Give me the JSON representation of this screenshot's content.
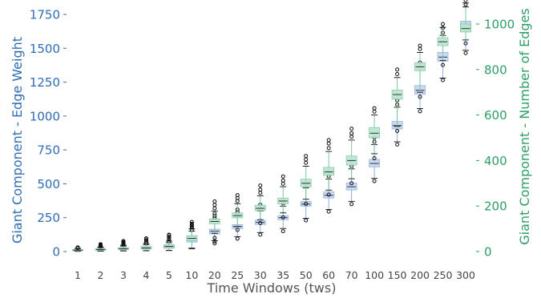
{
  "chart_data": {
    "type": "box",
    "xlabel": "Time Windows (tws)",
    "ylabel_left": "Giant Component - Edge Weight",
    "ylabel_right": "Giant Component - Number of Edges",
    "categories": [
      "1",
      "2",
      "3",
      "4",
      "5",
      "10",
      "20",
      "25",
      "30",
      "35",
      "50",
      "60",
      "70",
      "100",
      "150",
      "200",
      "250",
      "300"
    ],
    "ylim_left": [
      0,
      1750
    ],
    "ylim_right": [
      0,
      1000
    ],
    "yticks_left": [
      0,
      250,
      500,
      750,
      1000,
      1250,
      1500,
      1750
    ],
    "yticks_right": [
      0,
      200,
      400,
      600,
      800,
      1000
    ],
    "colors": {
      "left_axis": "#2f6db3",
      "right_axis": "#2e9e66",
      "weight_box": "#c9d9f2",
      "weight_edge": "#8eaee0",
      "edges_box": "#bfe6d2",
      "edges_edge": "#7ec9a3"
    },
    "series": [
      {
        "name": "Edge Weight",
        "axis": "left",
        "boxes": [
          {
            "whislo": 3,
            "q1": 8,
            "med": 11,
            "q3": 15,
            "whishi": 22,
            "fliers": [
              25,
              28,
              30
            ]
          },
          {
            "whislo": 4,
            "q1": 10,
            "med": 14,
            "q3": 19,
            "whishi": 30,
            "fliers": [
              35,
              40,
              45,
              52
            ]
          },
          {
            "whislo": 5,
            "q1": 14,
            "med": 19,
            "q3": 25,
            "whishi": 40,
            "fliers": [
              48,
              55,
              62,
              70
            ]
          },
          {
            "whislo": 6,
            "q1": 18,
            "med": 24,
            "q3": 32,
            "whishi": 50,
            "fliers": [
              60,
              70,
              82,
              95
            ]
          },
          {
            "whislo": 8,
            "q1": 25,
            "med": 33,
            "q3": 42,
            "whishi": 65,
            "fliers": [
              75,
              90,
              105,
              120
            ]
          },
          {
            "whislo": 20,
            "q1": 70,
            "med": 90,
            "q3": 110,
            "whishi": 150,
            "fliers": [
              160,
              175,
              190,
              205
            ]
          },
          {
            "whislo": 80,
            "q1": 130,
            "med": 150,
            "q3": 165,
            "whishi": 230,
            "fliers": [
              60,
              75,
              245,
              262,
              280
            ]
          },
          {
            "whislo": 110,
            "q1": 170,
            "med": 185,
            "q3": 198,
            "whishi": 255,
            "fliers": [
              95,
              270,
              290,
              310
            ]
          },
          {
            "whislo": 140,
            "q1": 200,
            "med": 215,
            "q3": 230,
            "whishi": 300,
            "fliers": [
              125,
              320,
              345
            ]
          },
          {
            "whislo": 170,
            "q1": 235,
            "med": 250,
            "q3": 265,
            "whishi": 335,
            "fliers": [
              150,
              355,
              380
            ]
          },
          {
            "whislo": 245,
            "q1": 335,
            "med": 350,
            "q3": 370,
            "whishi": 470,
            "fliers": [
              230,
              490,
              515
            ]
          },
          {
            "whislo": 310,
            "q1": 395,
            "med": 415,
            "q3": 440,
            "whishi": 535,
            "fliers": [
              295,
              555,
              585
            ]
          },
          {
            "whislo": 370,
            "q1": 455,
            "med": 478,
            "q3": 505,
            "whishi": 610,
            "fliers": [
              350,
              630,
              660
            ]
          },
          {
            "whislo": 540,
            "q1": 625,
            "med": 650,
            "q3": 680,
            "whishi": 790,
            "fliers": [
              520,
              810,
              840
            ]
          },
          {
            "whislo": 810,
            "q1": 905,
            "med": 930,
            "q3": 960,
            "whishi": 1065,
            "fliers": [
              790,
              1085,
              1115
            ]
          },
          {
            "whislo": 1055,
            "q1": 1160,
            "med": 1190,
            "q3": 1225,
            "whishi": 1345,
            "fliers": [
              1035,
              1365,
              1395
            ]
          },
          {
            "whislo": 1280,
            "q1": 1405,
            "med": 1435,
            "q3": 1470,
            "whishi": 1595,
            "fliers": [
              1265,
              1615,
              1650
            ]
          },
          {
            "whislo": 1485,
            "q1": 1625,
            "med": 1660,
            "q3": 1700,
            "whishi": 1835,
            "fliers": [
              1465,
              1855,
              1890
            ]
          }
        ]
      },
      {
        "name": "Number of Edges",
        "axis": "right",
        "boxes": [
          {
            "whislo": 1,
            "q1": 4,
            "med": 6,
            "q3": 9,
            "whishi": 14,
            "fliers": [
              16,
              18
            ]
          },
          {
            "whislo": 2,
            "q1": 6,
            "med": 9,
            "q3": 13,
            "whishi": 20,
            "fliers": [
              24,
              28,
              32
            ]
          },
          {
            "whislo": 3,
            "q1": 9,
            "med": 13,
            "q3": 17,
            "whishi": 28,
            "fliers": [
              34,
              40,
              46
            ]
          },
          {
            "whislo": 4,
            "q1": 12,
            "med": 16,
            "q3": 22,
            "whishi": 36,
            "fliers": [
              42,
              50,
              58
            ]
          },
          {
            "whislo": 5,
            "q1": 17,
            "med": 23,
            "q3": 30,
            "whishi": 46,
            "fliers": [
              54,
              64,
              74
            ]
          },
          {
            "whislo": 15,
            "q1": 48,
            "med": 58,
            "q3": 70,
            "whishi": 100,
            "fliers": [
              108,
              118,
              130
            ]
          },
          {
            "whislo": 80,
            "q1": 122,
            "med": 132,
            "q3": 143,
            "whishi": 178,
            "fliers": [
              60,
              190,
              205,
              220
            ]
          },
          {
            "whislo": 110,
            "q1": 148,
            "med": 158,
            "q3": 170,
            "whishi": 210,
            "fliers": [
              95,
              222,
              235,
              248
            ]
          },
          {
            "whislo": 140,
            "q1": 180,
            "med": 190,
            "q3": 204,
            "whishi": 245,
            "fliers": [
              125,
              258,
              272,
              290
            ]
          },
          {
            "whislo": 170,
            "q1": 210,
            "med": 222,
            "q3": 235,
            "whishi": 285,
            "fliers": [
              150,
              298,
              312,
              330
            ]
          },
          {
            "whislo": 230,
            "q1": 285,
            "med": 300,
            "q3": 318,
            "whishi": 375,
            "fliers": [
              210,
              390,
              405,
              420
            ]
          },
          {
            "whislo": 270,
            "q1": 335,
            "med": 350,
            "q3": 370,
            "whishi": 440,
            "fliers": [
              250,
              455,
              475,
              490
            ]
          },
          {
            "whislo": 320,
            "q1": 380,
            "med": 400,
            "q3": 420,
            "whishi": 490,
            "fliers": [
              300,
              505,
              520,
              540
            ]
          },
          {
            "whislo": 430,
            "q1": 500,
            "med": 520,
            "q3": 545,
            "whishi": 600,
            "fliers": [
              410,
              615,
              630
            ]
          },
          {
            "whislo": 550,
            "q1": 670,
            "med": 690,
            "q3": 710,
            "whishi": 765,
            "fliers": [
              530,
              780,
              800
            ]
          },
          {
            "whislo": 700,
            "q1": 795,
            "med": 812,
            "q3": 830,
            "whishi": 875,
            "fliers": [
              680,
              890,
              905
            ]
          },
          {
            "whislo": 840,
            "q1": 905,
            "med": 922,
            "q3": 940,
            "whishi": 985,
            "fliers": [
              820,
              1000
            ]
          },
          {
            "whislo": 930,
            "q1": 965,
            "med": 980,
            "q3": 1000,
            "whishi": 1075,
            "fliers": [
              915,
              1085
            ]
          }
        ]
      }
    ]
  }
}
